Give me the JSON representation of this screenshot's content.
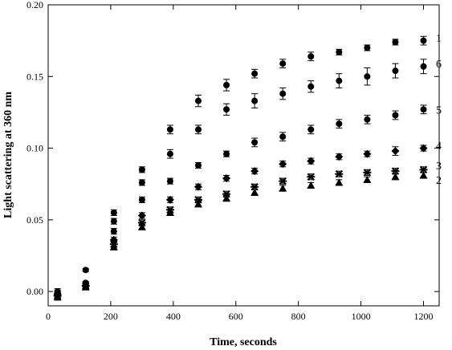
{
  "chart_data": {
    "type": "scatter",
    "title": "",
    "xlabel": "Time, seconds",
    "ylabel": "Light scattering at 360 nm",
    "xlim": [
      0,
      1250
    ],
    "ylim": [
      -0.01,
      0.2
    ],
    "xticks": [
      0,
      200,
      400,
      600,
      800,
      1000,
      1200
    ],
    "yticks": [
      0.0,
      0.05,
      0.1,
      0.15,
      0.2
    ],
    "ytick_labels": [
      "0.00",
      "0.05",
      "0.10",
      "0.15",
      "0.20"
    ],
    "x": [
      30,
      120,
      210,
      300,
      390,
      480,
      570,
      660,
      750,
      840,
      930,
      1020,
      1110,
      1200
    ],
    "grid": false,
    "legend": "none",
    "series": [
      {
        "name": "1",
        "marker": "circle",
        "values": [
          0.0,
          0.015,
          0.055,
          0.085,
          0.113,
          0.133,
          0.144,
          0.152,
          0.159,
          0.164,
          0.167,
          0.17,
          0.174,
          0.175
        ],
        "errors": [
          0.002,
          0.001,
          0.002,
          0.002,
          0.003,
          0.004,
          0.004,
          0.003,
          0.003,
          0.003,
          0.002,
          0.002,
          0.002,
          0.003
        ]
      },
      {
        "name": "6",
        "marker": "circle",
        "values": [
          -0.001,
          0.006,
          0.049,
          0.076,
          0.096,
          0.113,
          0.127,
          0.133,
          0.138,
          0.143,
          0.147,
          0.15,
          0.154,
          0.157
        ],
        "errors": [
          0.002,
          0.001,
          0.002,
          0.002,
          0.003,
          0.003,
          0.004,
          0.005,
          0.004,
          0.004,
          0.005,
          0.006,
          0.005,
          0.005
        ]
      },
      {
        "name": "5",
        "marker": "circle",
        "values": [
          -0.002,
          0.005,
          0.042,
          0.064,
          0.077,
          0.088,
          0.096,
          0.104,
          0.108,
          0.113,
          0.117,
          0.12,
          0.123,
          0.127
        ],
        "errors": [
          0.002,
          0.001,
          0.002,
          0.002,
          0.002,
          0.002,
          0.002,
          0.003,
          0.003,
          0.003,
          0.003,
          0.003,
          0.003,
          0.003
        ]
      },
      {
        "name": "4",
        "marker": "diamond",
        "values": [
          -0.002,
          0.004,
          0.036,
          0.053,
          0.064,
          0.073,
          0.079,
          0.084,
          0.089,
          0.091,
          0.094,
          0.096,
          0.098,
          0.1
        ],
        "errors": [
          0.002,
          0.001,
          0.002,
          0.002,
          0.002,
          0.002,
          0.002,
          0.002,
          0.002,
          0.002,
          0.002,
          0.002,
          0.003,
          0.002
        ]
      },
      {
        "name": "3",
        "marker": "star",
        "values": [
          -0.003,
          0.004,
          0.033,
          0.048,
          0.057,
          0.064,
          0.068,
          0.073,
          0.077,
          0.08,
          0.082,
          0.083,
          0.084,
          0.085
        ],
        "errors": [
          0.002,
          0.001,
          0.002,
          0.002,
          0.002,
          0.002,
          0.002,
          0.002,
          0.002,
          0.002,
          0.002,
          0.002,
          0.002,
          0.002
        ]
      },
      {
        "name": "2",
        "marker": "triangle",
        "values": [
          -0.004,
          0.003,
          0.031,
          0.045,
          0.055,
          0.061,
          0.065,
          0.069,
          0.072,
          0.074,
          0.076,
          0.078,
          0.08,
          0.081
        ],
        "errors": [
          0.002,
          0.001,
          0.002,
          0.002,
          0.002,
          0.002,
          0.002,
          0.002,
          0.002,
          0.002,
          0.002,
          0.002,
          0.002,
          0.002
        ]
      }
    ]
  }
}
